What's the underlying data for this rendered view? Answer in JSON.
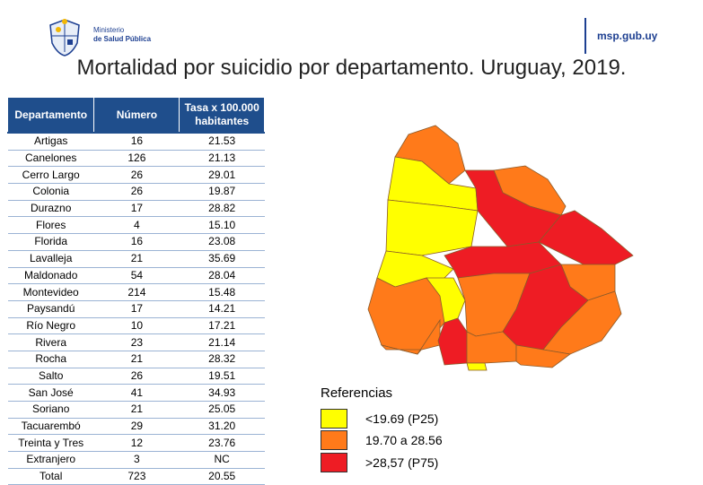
{
  "header": {
    "logo_line1": "Ministerio",
    "logo_line2": "de Salud Pública",
    "site": "msp.gub.uy",
    "title": "Mortalidad por suicidio por departamento. Uruguay, 2019."
  },
  "table": {
    "headers": [
      "Departamento",
      "Número",
      "Tasa x 100.000 habitantes"
    ],
    "header_rate_line1": "Tasa x 100.000",
    "header_rate_line2": "habitantes",
    "rows": [
      [
        "Artigas",
        "16",
        "21.53"
      ],
      [
        "Canelones",
        "126",
        "21.13"
      ],
      [
        "Cerro Largo",
        "26",
        "29.01"
      ],
      [
        "Colonia",
        "26",
        "19.87"
      ],
      [
        "Durazno",
        "17",
        "28.82"
      ],
      [
        "Flores",
        "4",
        "15.10"
      ],
      [
        "Florida",
        "16",
        "23.08"
      ],
      [
        "Lavalleja",
        "21",
        "35.69"
      ],
      [
        "Maldonado",
        "54",
        "28.04"
      ],
      [
        "Montevideo",
        "214",
        "15.48"
      ],
      [
        "Paysandú",
        "17",
        "14.21"
      ],
      [
        "Río Negro",
        "10",
        "17.21"
      ],
      [
        "Rivera",
        "23",
        "21.14"
      ],
      [
        "Rocha",
        "21",
        "28.32"
      ],
      [
        "Salto",
        "26",
        "19.51"
      ],
      [
        "San José",
        "41",
        "34.93"
      ],
      [
        "Soriano",
        "21",
        "25.05"
      ],
      [
        "Tacuarembó",
        "29",
        "31.20"
      ],
      [
        "Treinta y Tres",
        "12",
        "23.76"
      ],
      [
        "Extranjero",
        "3",
        "NC"
      ],
      [
        "Total",
        "723",
        "20.55"
      ]
    ]
  },
  "legend": {
    "title": "Referencias",
    "items": [
      {
        "label": "<19.69 (P25)",
        "color": "#ffff00"
      },
      {
        "label": "19.70 a 28.56",
        "color": "#ff7a1a"
      },
      {
        "label": ">28,57 (P75)",
        "color": "#ee1c24"
      }
    ]
  },
  "map": {
    "colors": {
      "low": "#ffff00",
      "mid": "#ff7a1a",
      "high": "#ee1c24"
    }
  }
}
